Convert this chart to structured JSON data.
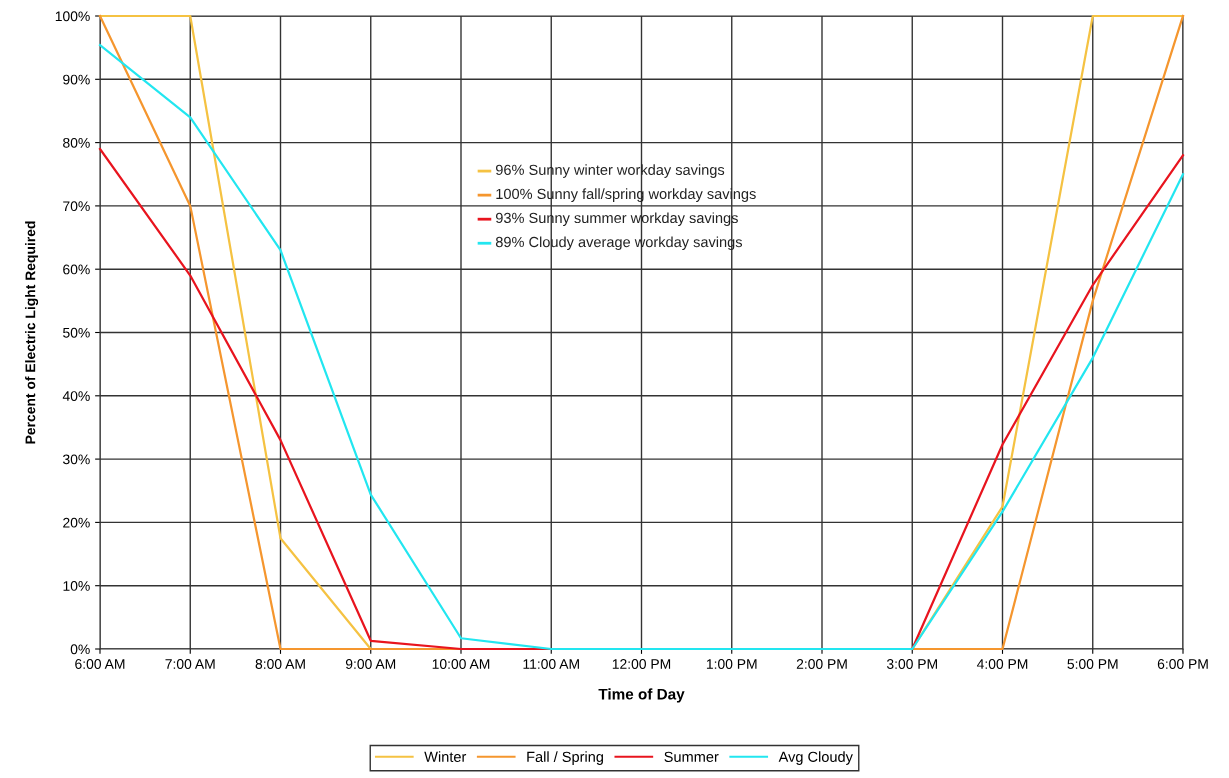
{
  "chart_data": {
    "type": "line",
    "xlabel": "Time of Day",
    "ylabel": "Percent of Electric Light Required",
    "categories": [
      "6:00 AM",
      "7:00 AM",
      "8:00 AM",
      "9:00 AM",
      "10:00 AM",
      "11:00 AM",
      "12:00 PM",
      "1:00 PM",
      "2:00 PM",
      "3:00 PM",
      "4:00 PM",
      "5:00 PM",
      "6:00 PM"
    ],
    "series": [
      {
        "name": "Winter",
        "color": "#f5c242",
        "values": [
          100,
          100,
          17.5,
          0,
          0,
          0,
          0,
          0,
          0,
          0,
          22.5,
          100,
          100
        ]
      },
      {
        "name": "Fall / Spring",
        "color": "#f5962e",
        "values": [
          100,
          70,
          0,
          0,
          0,
          0,
          0,
          0,
          0,
          0,
          0,
          55,
          100
        ]
      },
      {
        "name": "Summer",
        "color": "#e8141e",
        "values": [
          79,
          59,
          33,
          1.3,
          0,
          0,
          0,
          0,
          0,
          0,
          32.3,
          57.5,
          78
        ]
      },
      {
        "name": "Avg Cloudy",
        "color": "#22e6f0",
        "values": [
          95.4,
          84,
          63,
          24.4,
          1.7,
          0,
          0,
          0,
          0,
          0,
          21.7,
          46,
          75
        ]
      }
    ],
    "ylim": [
      0,
      100
    ],
    "yticks": [
      {
        "value": 0,
        "label": "0%"
      },
      {
        "value": 10,
        "label": "10%"
      },
      {
        "value": 20,
        "label": "20%"
      },
      {
        "value": 30,
        "label": "30%"
      },
      {
        "value": 40,
        "label": "40%"
      },
      {
        "value": 50,
        "label": "50%"
      },
      {
        "value": 60,
        "label": "60%"
      },
      {
        "value": 70,
        "label": "70%"
      },
      {
        "value": 80,
        "label": "80%"
      },
      {
        "value": 90,
        "label": "90%"
      },
      {
        "value": 100,
        "label": "100%"
      }
    ],
    "annotations": [
      "96% Sunny winter workday savings",
      "100% Sunny fall/spring workday savings",
      "93% Sunny summer workday savings",
      "89% Cloudy average workday savings"
    ],
    "grid": true,
    "legend": "bottom",
    "marker": "none",
    "line_style": "solid"
  }
}
